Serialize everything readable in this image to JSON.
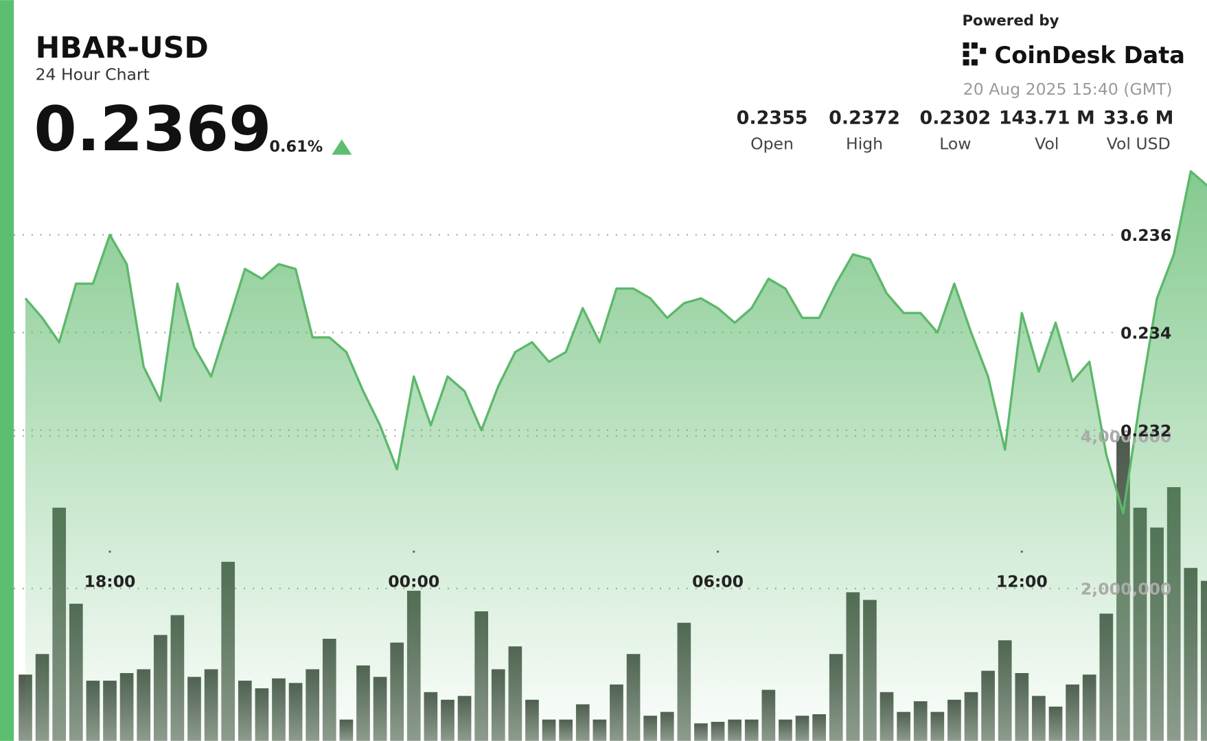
{
  "chart_data": {
    "type": "line",
    "title": "HBAR-USD",
    "subtitle": "24 Hour Chart",
    "price": "0.2369",
    "change": "0.61%",
    "powered_by": "Powered by",
    "brand": "CoinDesk Data",
    "timestamp": "20 Aug 2025 15:40 (GMT)",
    "stats": [
      {
        "value": "0.2355",
        "label": "Open"
      },
      {
        "value": "0.2372",
        "label": "High"
      },
      {
        "value": "0.2302",
        "label": "Low"
      },
      {
        "value": "143.71 M",
        "label": "Vol"
      },
      {
        "value": "33.6 M",
        "label": "Vol USD"
      }
    ],
    "categories": [
      null,
      null,
      null,
      null,
      null,
      "18:00",
      null,
      null,
      null,
      null,
      null,
      null,
      null,
      null,
      null,
      null,
      null,
      null,
      null,
      null,
      null,
      null,
      null,
      "00:00",
      null,
      null,
      null,
      null,
      null,
      null,
      null,
      null,
      null,
      null,
      null,
      null,
      null,
      null,
      null,
      null,
      null,
      "06:00",
      null,
      null,
      null,
      null,
      null,
      null,
      null,
      null,
      null,
      null,
      null,
      null,
      null,
      null,
      null,
      null,
      null,
      "12:00",
      null,
      null,
      null,
      null,
      null,
      null,
      null,
      null,
      null,
      null,
      null
    ],
    "series": [
      {
        "type": "line",
        "color": "#5cb86a",
        "values": [
          0.2347,
          0.2343,
          0.2338,
          0.235,
          0.235,
          0.236,
          0.2354,
          0.2333,
          0.2326,
          0.235,
          0.2337,
          0.2331,
          0.2342,
          0.2353,
          0.2351,
          0.2354,
          0.2353,
          0.2339,
          0.2339,
          0.2336,
          0.2328,
          0.2321,
          0.2312,
          0.2331,
          0.2321,
          0.2331,
          0.2328,
          0.232,
          0.2329,
          0.2336,
          0.2338,
          0.2334,
          0.2336,
          0.2345,
          0.2338,
          0.2349,
          0.2349,
          0.2347,
          0.2343,
          0.2346,
          0.2347,
          0.2345,
          0.2342,
          0.2345,
          0.2351,
          0.2349,
          0.2343,
          0.2343,
          0.235,
          0.2356,
          0.2355,
          0.2348,
          0.2344,
          0.2344,
          0.234,
          0.235,
          0.234,
          0.2331,
          0.2316,
          0.2344,
          0.2332,
          0.2342,
          0.233,
          0.2334,
          0.2315,
          0.2303,
          0.2326,
          0.2347,
          0.2356,
          0.2373,
          0.237
        ]
      },
      {
        "type": "bar",
        "axis": "y2",
        "color": "#5f6b5f",
        "values": [
          870000,
          1140000,
          3060000,
          1800000,
          790000,
          790000,
          890000,
          940000,
          1390000,
          1650000,
          840000,
          940000,
          2350000,
          790000,
          690000,
          820000,
          760000,
          940000,
          1340000,
          280000,
          990000,
          840000,
          1290000,
          1970000,
          640000,
          540000,
          590000,
          1700000,
          940000,
          1240000,
          540000,
          280000,
          280000,
          480000,
          280000,
          740000,
          1140000,
          330000,
          380000,
          1550000,
          230000,
          250000,
          280000,
          280000,
          670000,
          280000,
          330000,
          350000,
          1140000,
          1950000,
          1850000,
          640000,
          380000,
          520000,
          380000,
          540000,
          640000,
          920000,
          1320000,
          890000,
          590000,
          450000,
          740000,
          870000,
          1670000,
          4000000,
          3060000,
          2800000,
          3330000,
          2270000,
          2100000
        ]
      }
    ],
    "ylim": [
      0.22564,
      0.23734
    ],
    "yticks": [
      0.232,
      0.234,
      0.236
    ],
    "y2lim": [
      0,
      7500000
    ],
    "y2ticks": [
      {
        "value": 2000000,
        "label": "2,000,000"
      },
      {
        "value": 4000000,
        "label": "4,000,000"
      }
    ],
    "grid": true
  }
}
